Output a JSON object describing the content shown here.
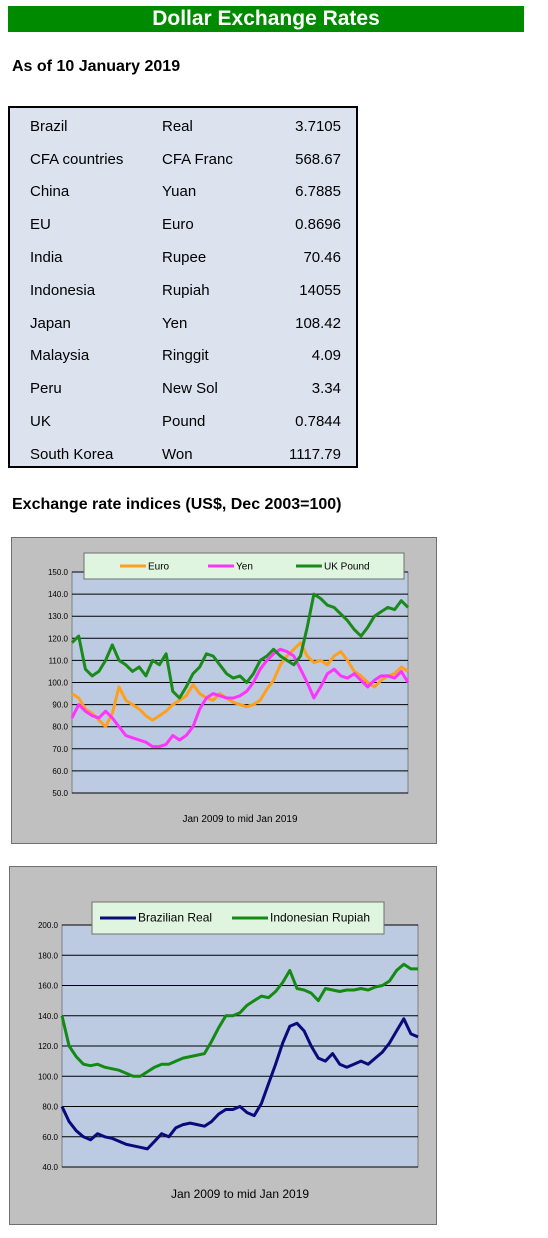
{
  "header": {
    "title": "Dollar Exchange Rates",
    "as_of": "As of 10 January 2019"
  },
  "rates": [
    {
      "country": "Brazil",
      "currency": "Real",
      "rate": "3.7105"
    },
    {
      "country": "CFA countries",
      "currency": "CFA Franc",
      "rate": "568.67"
    },
    {
      "country": "China",
      "currency": "Yuan",
      "rate": "6.7885"
    },
    {
      "country": "EU",
      "currency": "Euro",
      "rate": "0.8696"
    },
    {
      "country": "India",
      "currency": "Rupee",
      "rate": "70.46"
    },
    {
      "country": "Indonesia",
      "currency": "Rupiah",
      "rate": "14055"
    },
    {
      "country": "Japan",
      "currency": "Yen",
      "rate": "108.42"
    },
    {
      "country": "Malaysia",
      "currency": "Ringgit",
      "rate": "4.09"
    },
    {
      "country": "Peru",
      "currency": "New Sol",
      "rate": "3.34"
    },
    {
      "country": "UK",
      "currency": "Pound",
      "rate": "0.7844"
    },
    {
      "country": "South Korea",
      "currency": "Won",
      "rate": "1117.79"
    }
  ],
  "indices_heading": "Exchange rate indices (US$, Dec 2003=100)",
  "chart_data": [
    {
      "type": "line",
      "xlabel": "Jan 2009  to mid Jan 2019",
      "ylim": [
        50,
        150
      ],
      "yticks": [
        "150.0",
        "140.0",
        "130.0",
        "120.0",
        "110.0",
        "100.0",
        "90.0",
        "80.0",
        "70.0",
        "60.0",
        "50.0"
      ],
      "legend_position": "top",
      "grid": true,
      "xrange": [
        0,
        10
      ],
      "series": [
        {
          "name": "Euro",
          "color": "#ff9f1c",
          "x": [
            0,
            0.2,
            0.4,
            0.6,
            0.8,
            1.0,
            1.2,
            1.4,
            1.6,
            1.8,
            2.0,
            2.2,
            2.4,
            2.6,
            2.8,
            3.0,
            3.2,
            3.4,
            3.6,
            3.8,
            4.0,
            4.2,
            4.4,
            4.6,
            4.8,
            5.0,
            5.2,
            5.4,
            5.6,
            5.8,
            6.0,
            6.2,
            6.4,
            6.6,
            6.8,
            7.0,
            7.2,
            7.4,
            7.6,
            7.8,
            8.0,
            8.2,
            8.4,
            8.6,
            8.8,
            9.0,
            9.2,
            9.4,
            9.6,
            9.8,
            10.0
          ],
          "y": [
            95,
            93,
            88,
            86,
            83,
            80,
            86,
            98,
            92,
            90,
            88,
            85,
            83,
            85,
            87,
            90,
            92,
            94,
            99,
            95,
            93,
            92,
            95,
            93,
            91,
            90,
            89,
            90,
            92,
            97,
            101,
            108,
            112,
            115,
            118,
            112,
            109,
            110,
            108,
            112,
            114,
            110,
            105,
            103,
            100,
            98,
            101,
            103,
            104,
            107,
            105
          ]
        },
        {
          "name": "Yen",
          "color": "#ff33ff",
          "x": [
            0,
            0.2,
            0.4,
            0.6,
            0.8,
            1.0,
            1.2,
            1.4,
            1.6,
            1.8,
            2.0,
            2.2,
            2.4,
            2.6,
            2.8,
            3.0,
            3.2,
            3.4,
            3.6,
            3.8,
            4.0,
            4.2,
            4.4,
            4.6,
            4.8,
            5.0,
            5.2,
            5.4,
            5.6,
            5.8,
            6.0,
            6.2,
            6.4,
            6.6,
            6.8,
            7.0,
            7.2,
            7.4,
            7.6,
            7.8,
            8.0,
            8.2,
            8.4,
            8.6,
            8.8,
            9.0,
            9.2,
            9.4,
            9.6,
            9.8,
            10.0
          ],
          "y": [
            84,
            90,
            87,
            85,
            84,
            87,
            84,
            80,
            76,
            75,
            74,
            73,
            71,
            71,
            72,
            76,
            74,
            76,
            80,
            88,
            93,
            95,
            94,
            93,
            93,
            94,
            96,
            100,
            106,
            110,
            113,
            115,
            114,
            112,
            106,
            100,
            93,
            98,
            104,
            106,
            103,
            102,
            104,
            101,
            98,
            101,
            103,
            103,
            102,
            105,
            100
          ]
        },
        {
          "name": "UK Pound",
          "color": "#1a8a1a",
          "x": [
            0,
            0.2,
            0.4,
            0.6,
            0.8,
            1.0,
            1.2,
            1.4,
            1.6,
            1.8,
            2.0,
            2.2,
            2.4,
            2.6,
            2.8,
            3.0,
            3.2,
            3.4,
            3.6,
            3.8,
            4.0,
            4.2,
            4.4,
            4.6,
            4.8,
            5.0,
            5.2,
            5.4,
            5.6,
            5.8,
            6.0,
            6.2,
            6.4,
            6.6,
            6.8,
            7.0,
            7.2,
            7.4,
            7.6,
            7.8,
            8.0,
            8.2,
            8.4,
            8.6,
            8.8,
            9.0,
            9.2,
            9.4,
            9.6,
            9.8,
            10.0
          ],
          "y": [
            118,
            121,
            106,
            103,
            105,
            110,
            117,
            110,
            108,
            105,
            107,
            103,
            110,
            108,
            113,
            96,
            93,
            98,
            104,
            107,
            113,
            112,
            108,
            104,
            102,
            103,
            100,
            104,
            110,
            112,
            115,
            112,
            110,
            108,
            112,
            125,
            140,
            138,
            135,
            134,
            131,
            128,
            124,
            121,
            125,
            130,
            132,
            134,
            133,
            137,
            134
          ]
        }
      ]
    },
    {
      "type": "line",
      "xlabel": "Jan 2009  to mid  Jan 2019",
      "ylim": [
        40,
        200
      ],
      "yticks": [
        "200.0",
        "180.0",
        "160.0",
        "140.0",
        "120.0",
        "100.0",
        "80.0",
        "60.0",
        "40.0"
      ],
      "legend_position": "top",
      "grid": true,
      "xrange": [
        0,
        10
      ],
      "series": [
        {
          "name": "Brazilian Real",
          "color": "#0a0a7a",
          "x": [
            0,
            0.2,
            0.4,
            0.6,
            0.8,
            1.0,
            1.2,
            1.4,
            1.6,
            1.8,
            2.0,
            2.2,
            2.4,
            2.6,
            2.8,
            3.0,
            3.2,
            3.4,
            3.6,
            3.8,
            4.0,
            4.2,
            4.4,
            4.6,
            4.8,
            5.0,
            5.2,
            5.4,
            5.6,
            5.8,
            6.0,
            6.2,
            6.4,
            6.6,
            6.8,
            7.0,
            7.2,
            7.4,
            7.6,
            7.8,
            8.0,
            8.2,
            8.4,
            8.6,
            8.8,
            9.0,
            9.2,
            9.4,
            9.6,
            9.8,
            10.0
          ],
          "y": [
            80,
            70,
            64,
            60,
            58,
            62,
            60,
            59,
            57,
            55,
            54,
            53,
            52,
            57,
            62,
            60,
            66,
            68,
            69,
            68,
            67,
            70,
            75,
            78,
            78,
            80,
            76,
            74,
            82,
            95,
            108,
            122,
            133,
            135,
            130,
            120,
            112,
            110,
            115,
            108,
            106,
            108,
            110,
            108,
            112,
            116,
            122,
            130,
            138,
            128,
            126
          ]
        },
        {
          "name": "Indonesian Rupiah",
          "color": "#148a14",
          "x": [
            0,
            0.2,
            0.4,
            0.6,
            0.8,
            1.0,
            1.2,
            1.4,
            1.6,
            1.8,
            2.0,
            2.2,
            2.4,
            2.6,
            2.8,
            3.0,
            3.2,
            3.4,
            3.6,
            3.8,
            4.0,
            4.2,
            4.4,
            4.6,
            4.8,
            5.0,
            5.2,
            5.4,
            5.6,
            5.8,
            6.0,
            6.2,
            6.4,
            6.6,
            6.8,
            7.0,
            7.2,
            7.4,
            7.6,
            7.8,
            8.0,
            8.2,
            8.4,
            8.6,
            8.8,
            9.0,
            9.2,
            9.4,
            9.6,
            9.8,
            10.0
          ],
          "y": [
            140,
            120,
            113,
            108,
            107,
            108,
            106,
            105,
            104,
            102,
            100,
            100,
            103,
            106,
            108,
            108,
            110,
            112,
            113,
            114,
            115,
            123,
            132,
            140,
            140,
            142,
            147,
            150,
            153,
            152,
            156,
            162,
            170,
            158,
            157,
            155,
            150,
            158,
            157,
            156,
            157,
            157,
            158,
            157,
            159,
            160,
            163,
            170,
            174,
            171,
            171
          ]
        }
      ]
    }
  ]
}
